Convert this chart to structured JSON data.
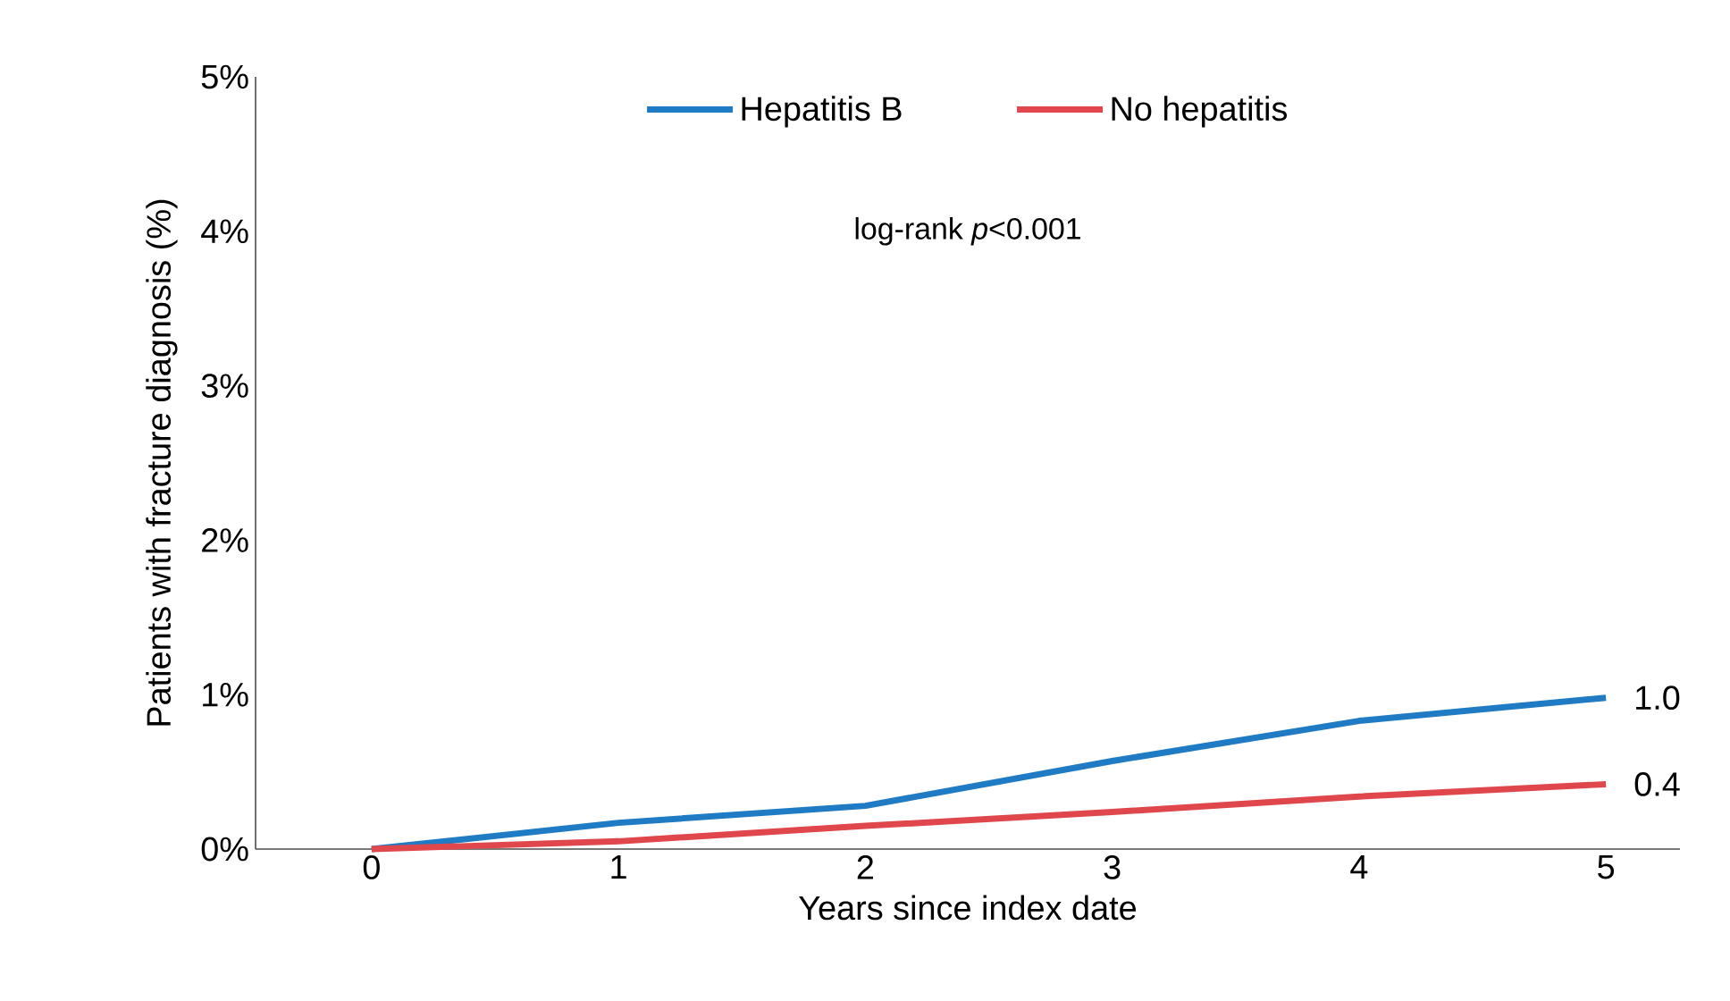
{
  "chart_data": {
    "type": "line",
    "xlabel": "Years since index date",
    "ylabel": "Patients with fracture diagnosis (%)",
    "annotations": [
      "log-rank *p*<0.001"
    ],
    "x": [
      0,
      1,
      2,
      3,
      4,
      5
    ],
    "series": [
      {
        "name": "Hepatitis B",
        "color": "#1f7bc4",
        "values": [
          0,
          0.17,
          0.28,
          0.57,
          0.83,
          0.98
        ],
        "value_labels": [
          null,
          null,
          null,
          null,
          null,
          "1.0"
        ]
      },
      {
        "name": "No hepatitis",
        "color": "#e0474c",
        "values": [
          0,
          0.05,
          0.15,
          0.24,
          0.34,
          0.42
        ],
        "value_labels": [
          null,
          null,
          null,
          null,
          null,
          "0.4"
        ]
      }
    ],
    "xlim": [
      -0.47,
      5.3
    ],
    "xticks": [
      0,
      1,
      2,
      3,
      4,
      5
    ],
    "ylim": [
      0,
      5
    ],
    "yticks": [
      {
        "value": 0,
        "label": "0%"
      },
      {
        "value": 1,
        "label": "1%"
      },
      {
        "value": 2,
        "label": "2%"
      },
      {
        "value": 3,
        "label": "3%"
      },
      {
        "value": 4,
        "label": "4%"
      },
      {
        "value": 5,
        "label": "5%"
      }
    ],
    "legend": "top",
    "line_style": "solid"
  }
}
